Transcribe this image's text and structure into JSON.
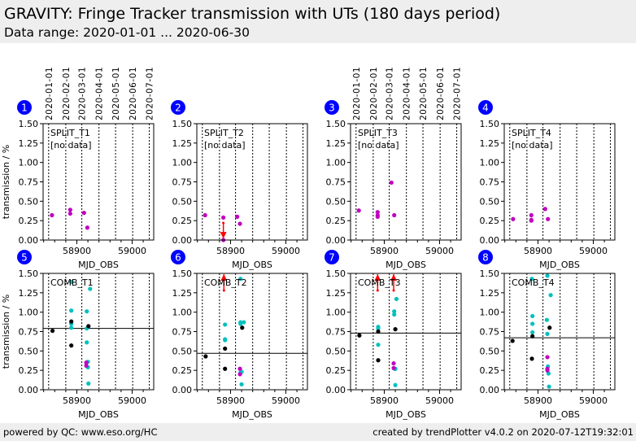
{
  "header": {
    "title": "GRAVITY: Fringe Tracker transmission with UTs (180 days period)",
    "subtitle": "Data range: 2020-01-01 ... 2020-06-30"
  },
  "footer": {
    "left": "powered by QC: www.eso.org/HC",
    "right": "created by trendPlotter v4.0.2 on 2020-07-12T19:32:01"
  },
  "colors": {
    "magenta": "#c000c0",
    "cyan": "#00c0c0",
    "black": "#000000",
    "limit_arrow": "#ff0000",
    "badge": "#0000ff"
  },
  "chart_data": {
    "type": "scatter",
    "xlabel": "MJD_OBS",
    "ylabel": "transmission / %",
    "xlim": [
      58839,
      59039
    ],
    "ylim": [
      0,
      1.5
    ],
    "xticks": [
      58900,
      59000
    ],
    "xtick_labels": [
      "58900",
      "59000"
    ],
    "yticks": [
      0,
      0.25,
      0.5,
      0.75,
      1.0,
      1.25,
      1.5
    ],
    "ytick_labels": [
      "0.00",
      "0.25",
      "0.50",
      "0.75",
      "1.00",
      "1.25",
      "1.50"
    ],
    "date_gridlines": [
      {
        "label": "2020-01-01",
        "mjd": 58849
      },
      {
        "label": "2020-02-01",
        "mjd": 58880
      },
      {
        "label": "2020-03-01",
        "mjd": 58909
      },
      {
        "label": "2020-04-01",
        "mjd": 58940
      },
      {
        "label": "2020-05-01",
        "mjd": 58970
      },
      {
        "label": "2020-06-01",
        "mjd": 59001
      },
      {
        "label": "2020-07-01",
        "mjd": 59031
      }
    ],
    "panels": [
      {
        "number": "1",
        "label": "SPLIT_T1",
        "note": "[no data]",
        "show_dates": true,
        "show_ylabel": true,
        "points": [
          {
            "c": "magenta",
            "pts": [
              [
                58855,
                0.32
              ],
              [
                58888,
                0.39
              ],
              [
                58888,
                0.34
              ],
              [
                58913,
                0.35
              ],
              [
                58919,
                0.16
              ]
            ]
          }
        ],
        "limits": []
      },
      {
        "number": "2",
        "label": "SPLIT_T2",
        "note": "[no data]",
        "show_dates": false,
        "show_ylabel": false,
        "points": [
          {
            "c": "magenta",
            "pts": [
              [
                58854,
                0.32
              ],
              [
                58887,
                0.29
              ],
              [
                58912,
                0.3
              ],
              [
                58917,
                0.21
              ],
              [
                58887,
                0.0
              ]
            ]
          }
        ],
        "limits": [
          {
            "x": 58887,
            "from": 0.22,
            "to": 0.02
          }
        ]
      },
      {
        "number": "3",
        "label": "SPLIT_T3",
        "note": "[no data]",
        "show_dates": true,
        "show_ylabel": false,
        "points": [
          {
            "c": "magenta",
            "pts": [
              [
                58854,
                0.38
              ],
              [
                58888,
                0.36
              ],
              [
                58888,
                0.32
              ],
              [
                58888,
                0.3
              ],
              [
                58913,
                0.74
              ],
              [
                58918,
                0.32
              ]
            ]
          }
        ],
        "limits": []
      },
      {
        "number": "4",
        "label": "SPLIT_T4",
        "note": "[no data]",
        "show_dates": false,
        "show_ylabel": false,
        "points": [
          {
            "c": "magenta",
            "pts": [
              [
                58855,
                0.27
              ],
              [
                58888,
                0.32
              ],
              [
                58888,
                0.26
              ],
              [
                58888,
                0.25
              ],
              [
                58913,
                0.4
              ],
              [
                58918,
                0.27
              ]
            ]
          }
        ],
        "limits": []
      },
      {
        "number": "5",
        "label": "COMB_T1",
        "note": "",
        "show_dates": false,
        "show_ylabel": true,
        "hline": 0.79,
        "points": [
          {
            "c": "cyan",
            "pts": [
              [
                58890,
                1.39
              ],
              [
                58890,
                1.02
              ],
              [
                58890,
                0.85
              ],
              [
                58890,
                0.8
              ],
              [
                58918,
                1.01
              ],
              [
                58918,
                0.79
              ],
              [
                58918,
                0.61
              ],
              [
                58920,
                0.36
              ],
              [
                58920,
                0.29
              ],
              [
                58921,
                0.08
              ],
              [
                58924,
                1.3
              ]
            ]
          },
          {
            "c": "magenta",
            "pts": [
              [
                58917,
                0.35
              ],
              [
                58917,
                0.31
              ]
            ]
          },
          {
            "c": "black",
            "pts": [
              [
                58856,
                0.76
              ],
              [
                58890,
                0.88
              ],
              [
                58890,
                0.57
              ],
              [
                58921,
                0.82
              ]
            ]
          }
        ],
        "limits": []
      },
      {
        "number": "6",
        "label": "COMB_T2",
        "note": "",
        "show_dates": false,
        "show_ylabel": false,
        "hline": 0.47,
        "points": [
          {
            "c": "cyan",
            "pts": [
              [
                58890,
                0.84
              ],
              [
                58890,
                0.65
              ],
              [
                58890,
                0.64
              ],
              [
                58918,
                1.43
              ],
              [
                58918,
                0.87
              ],
              [
                58918,
                0.85
              ],
              [
                58924,
                0.87
              ],
              [
                58918,
                0.22
              ],
              [
                58920,
                0.23
              ],
              [
                58920,
                0.07
              ]
            ]
          },
          {
            "c": "magenta",
            "pts": [
              [
                58917,
                0.27
              ],
              [
                58917,
                0.2
              ]
            ]
          },
          {
            "c": "black",
            "pts": [
              [
                58855,
                0.43
              ],
              [
                58890,
                0.53
              ],
              [
                58890,
                0.27
              ],
              [
                58921,
                0.8
              ]
            ]
          }
        ],
        "limits": [
          {
            "x": 58888,
            "from": 1.28,
            "to": 1.49
          }
        ]
      },
      {
        "number": "7",
        "label": "COMB_T3",
        "note": "",
        "show_dates": false,
        "show_ylabel": false,
        "hline": 0.73,
        "points": [
          {
            "c": "cyan",
            "pts": [
              [
                58889,
                0.81
              ],
              [
                58889,
                0.79
              ],
              [
                58889,
                0.58
              ],
              [
                58918,
                1.01
              ],
              [
                58918,
                0.97
              ],
              [
                58922,
                1.17
              ],
              [
                58919,
                0.27
              ],
              [
                58920,
                0.27
              ],
              [
                58920,
                0.06
              ]
            ]
          },
          {
            "c": "magenta",
            "pts": [
              [
                58917,
                0.34
              ],
              [
                58917,
                0.28
              ]
            ]
          },
          {
            "c": "black",
            "pts": [
              [
                58855,
                0.7
              ],
              [
                58889,
                0.75
              ],
              [
                58889,
                0.38
              ],
              [
                58920,
                0.78
              ]
            ]
          }
        ],
        "limits": [
          {
            "x": 58888,
            "from": 1.28,
            "to": 1.49
          },
          {
            "x": 58917,
            "from": 1.28,
            "to": 1.49
          }
        ]
      },
      {
        "number": "8",
        "label": "COMB_T4",
        "note": "",
        "show_dates": false,
        "show_ylabel": false,
        "hline": 0.67,
        "points": [
          {
            "c": "cyan",
            "pts": [
              [
                58889,
                1.43
              ],
              [
                58890,
                0.95
              ],
              [
                58890,
                0.85
              ],
              [
                58890,
                0.74
              ],
              [
                58917,
                1.47
              ],
              [
                58916,
                0.9
              ],
              [
                58917,
                0.72
              ],
              [
                58923,
                1.22
              ],
              [
                58918,
                0.3
              ],
              [
                58919,
                0.21
              ],
              [
                58920,
                0.04
              ]
            ]
          },
          {
            "c": "magenta",
            "pts": [
              [
                58917,
                0.42
              ],
              [
                58917,
                0.27
              ],
              [
                58917,
                0.25
              ]
            ]
          },
          {
            "c": "black",
            "pts": [
              [
                58854,
                0.63
              ],
              [
                58890,
                0.69
              ],
              [
                58889,
                0.4
              ],
              [
                58921,
                0.8
              ]
            ]
          }
        ],
        "limits": []
      }
    ]
  }
}
